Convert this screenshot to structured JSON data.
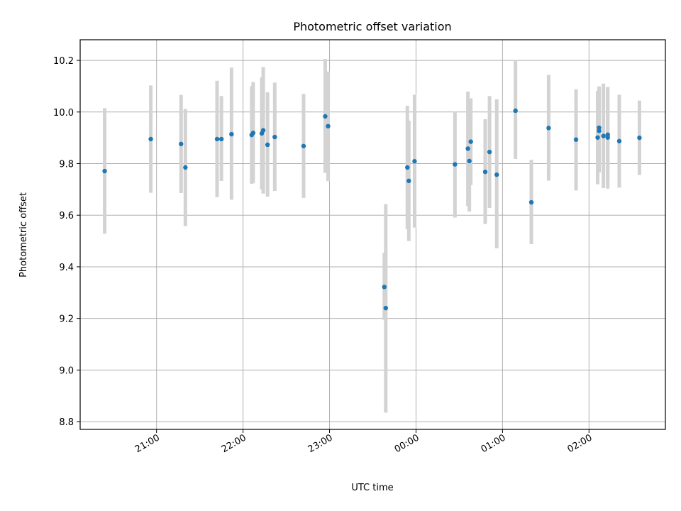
{
  "chart_data": {
    "type": "scatter",
    "title": "Photometric offset variation",
    "xlabel": "UTC time",
    "ylabel": "Photometric offset",
    "grid": true,
    "xlim": [
      "20:07",
      "02:53"
    ],
    "ylim": [
      8.77,
      10.28
    ],
    "x_ticks": [
      "21:00",
      "22:00",
      "23:00",
      "00:00",
      "01:00",
      "02:00"
    ],
    "y_ticks": [
      8.8,
      9.0,
      9.2,
      9.4,
      9.6,
      9.8,
      10.0,
      10.2
    ],
    "errorbar_color": "#d3d3d3",
    "marker_color": "#1f77b4",
    "points": [
      {
        "t": "20:24",
        "y": 9.771,
        "lo": 9.528,
        "hi": 10.015
      },
      {
        "t": "20:56",
        "y": 9.895,
        "lo": 9.687,
        "hi": 10.103
      },
      {
        "t": "21:17",
        "y": 9.876,
        "lo": 9.686,
        "hi": 10.066
      },
      {
        "t": "21:20",
        "y": 9.785,
        "lo": 9.558,
        "hi": 10.012
      },
      {
        "t": "21:42",
        "y": 9.895,
        "lo": 9.67,
        "hi": 10.121
      },
      {
        "t": "21:45",
        "y": 9.895,
        "lo": 9.733,
        "hi": 10.062
      },
      {
        "t": "21:52",
        "y": 9.914,
        "lo": 9.66,
        "hi": 10.172
      },
      {
        "t": "22:06",
        "y": 9.911,
        "lo": 9.722,
        "hi": 10.1
      },
      {
        "t": "22:07",
        "y": 9.919,
        "lo": 9.724,
        "hi": 10.116
      },
      {
        "t": "22:13",
        "y": 9.917,
        "lo": 9.7,
        "hi": 10.134
      },
      {
        "t": "22:14",
        "y": 9.929,
        "lo": 9.684,
        "hi": 10.174
      },
      {
        "t": "22:17",
        "y": 9.873,
        "lo": 9.672,
        "hi": 10.076
      },
      {
        "t": "22:22",
        "y": 9.903,
        "lo": 9.694,
        "hi": 10.114
      },
      {
        "t": "22:42",
        "y": 9.868,
        "lo": 9.667,
        "hi": 10.07
      },
      {
        "t": "22:57",
        "y": 9.983,
        "lo": 9.764,
        "hi": 10.205
      },
      {
        "t": "22:59",
        "y": 9.945,
        "lo": 9.732,
        "hi": 10.157
      },
      {
        "t": "23:38",
        "y": 9.322,
        "lo": 9.195,
        "hi": 9.454
      },
      {
        "t": "23:39",
        "y": 9.24,
        "lo": 8.835,
        "hi": 9.643
      },
      {
        "t": "23:54",
        "y": 9.785,
        "lo": 9.546,
        "hi": 10.024
      },
      {
        "t": "23:55",
        "y": 9.733,
        "lo": 9.5,
        "hi": 9.966
      },
      {
        "t": "23:59",
        "y": 9.809,
        "lo": 9.552,
        "hi": 10.067
      },
      {
        "t": "00:27",
        "y": 9.797,
        "lo": 9.591,
        "hi": 10.0
      },
      {
        "t": "00:36",
        "y": 9.858,
        "lo": 9.635,
        "hi": 10.079
      },
      {
        "t": "00:37",
        "y": 9.81,
        "lo": 9.614,
        "hi": 10.006
      },
      {
        "t": "00:38",
        "y": 9.885,
        "lo": 9.717,
        "hi": 10.053
      },
      {
        "t": "00:48",
        "y": 9.768,
        "lo": 9.566,
        "hi": 9.972
      },
      {
        "t": "00:51",
        "y": 9.845,
        "lo": 9.628,
        "hi": 10.062
      },
      {
        "t": "00:56",
        "y": 9.757,
        "lo": 9.472,
        "hi": 10.049
      },
      {
        "t": "01:09",
        "y": 10.005,
        "lo": 9.818,
        "hi": 10.197
      },
      {
        "t": "01:20",
        "y": 9.65,
        "lo": 9.488,
        "hi": 9.815
      },
      {
        "t": "01:32",
        "y": 9.938,
        "lo": 9.734,
        "hi": 10.144
      },
      {
        "t": "01:51",
        "y": 9.893,
        "lo": 9.696,
        "hi": 10.088
      },
      {
        "t": "02:06",
        "y": 9.901,
        "lo": 9.72,
        "hi": 10.082
      },
      {
        "t": "02:07",
        "y": 9.939,
        "lo": 9.779,
        "hi": 10.099
      },
      {
        "t": "02:07",
        "y": 9.927,
        "lo": 9.766,
        "hi": 10.089
      },
      {
        "t": "02:10",
        "y": 9.907,
        "lo": 9.705,
        "hi": 10.11
      },
      {
        "t": "02:13",
        "y": 9.901,
        "lo": 9.703,
        "hi": 10.097
      },
      {
        "t": "02:13",
        "y": 9.912,
        "lo": 9.736,
        "hi": 10.087
      },
      {
        "t": "02:21",
        "y": 9.887,
        "lo": 9.707,
        "hi": 10.067
      },
      {
        "t": "02:35",
        "y": 9.9,
        "lo": 9.756,
        "hi": 10.044
      }
    ]
  }
}
